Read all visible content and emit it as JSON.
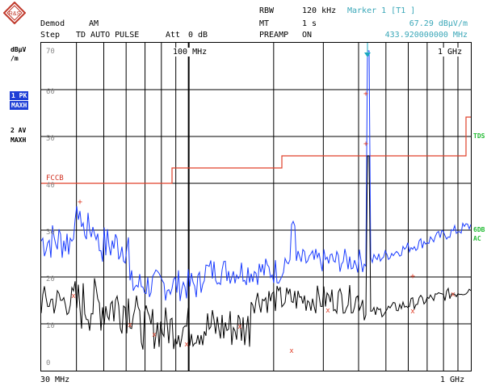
{
  "header": {
    "logo_text": "R&S",
    "demod_label": "Demod",
    "demod_value": "AM",
    "step_label": "Step",
    "step_value": "TD AUTO PULSE",
    "att_label": "Att",
    "att_value": "0 dB",
    "rbw_label": "RBW",
    "rbw_value": "120 kHz",
    "mt_label": "MT",
    "mt_value": "1 s",
    "preamp_label": "PREAMP",
    "preamp_value": "ON",
    "marker_title": "Marker 1 [T1 ]",
    "marker_level": "67.29 dBµV/m",
    "marker_freq": "433.920000000 MHz"
  },
  "side": {
    "unit_line1": "dBµV",
    "unit_line2": "/m",
    "trace1_label": "1 PK",
    "trace1_mode": "MAXH",
    "trace2_label": "2 AV",
    "trace2_mode": "MAXH"
  },
  "plot": {
    "y_ticks": [
      "70",
      "60",
      "50",
      "40",
      "30",
      "20",
      "10",
      "0"
    ],
    "top_freq_labels": [
      "100 MHz",
      "1 GHz"
    ],
    "bottom_left": "30 MHz",
    "bottom_right": "1 GHz",
    "limit_label": "FCCB",
    "right_label_tds": "TDS",
    "right_label_6db_1": "6DB",
    "right_label_6db_2": "AC"
  },
  "colors": {
    "pk_trace": "#1a3cff",
    "av_trace": "#000000",
    "limit_line": "#e0402a",
    "marker": "#1aa7c0",
    "info_cyan": "#3aa7b8",
    "label_green": "#22bb33"
  }
}
